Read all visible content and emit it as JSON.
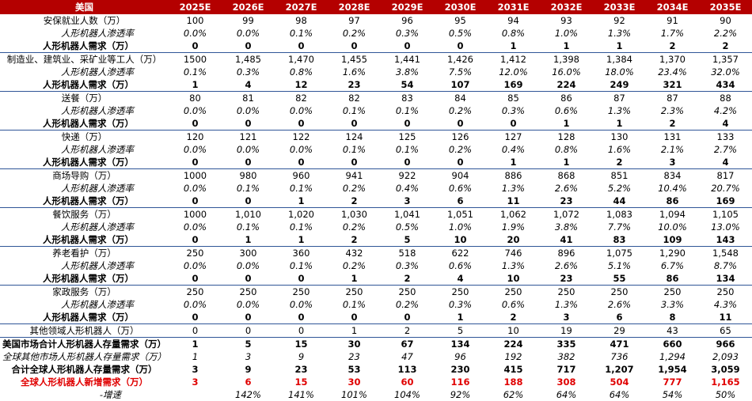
{
  "header": {
    "title": "美国",
    "years": [
      "2025E",
      "2026E",
      "2027E",
      "2028E",
      "2029E",
      "2030E",
      "2031E",
      "2032E",
      "2033E",
      "2034E",
      "2035E"
    ]
  },
  "rows": [
    {
      "label": "安保就业人数（万）",
      "values": [
        "100",
        "99",
        "98",
        "97",
        "96",
        "95",
        "94",
        "93",
        "92",
        "91",
        "90"
      ]
    },
    {
      "label": "人形机器人渗透率",
      "values": [
        "0.0%",
        "0.0%",
        "0.1%",
        "0.2%",
        "0.3%",
        "0.5%",
        "0.8%",
        "1.0%",
        "1.3%",
        "1.7%",
        "2.2%"
      ]
    },
    {
      "label": "人形机器人需求（万）",
      "values": [
        "0",
        "0",
        "0",
        "0",
        "0",
        "0",
        "1",
        "1",
        "1",
        "2",
        "2"
      ]
    },
    {
      "label": "制造业、建筑业、采矿业等工人（万）",
      "values": [
        "1500",
        "1,485",
        "1,470",
        "1,455",
        "1,441",
        "1,426",
        "1,412",
        "1,398",
        "1,384",
        "1,370",
        "1,357"
      ]
    },
    {
      "label": "人形机器人渗透率",
      "values": [
        "0.1%",
        "0.3%",
        "0.8%",
        "1.6%",
        "3.8%",
        "7.5%",
        "12.0%",
        "16.0%",
        "18.0%",
        "23.4%",
        "32.0%"
      ]
    },
    {
      "label": "人形机器人需求（万）",
      "values": [
        "1",
        "4",
        "12",
        "23",
        "54",
        "107",
        "169",
        "224",
        "249",
        "321",
        "434"
      ]
    },
    {
      "label": "送餐（万）",
      "values": [
        "80",
        "81",
        "82",
        "82",
        "83",
        "84",
        "85",
        "86",
        "87",
        "87",
        "88"
      ]
    },
    {
      "label": "人形机器人渗透率",
      "values": [
        "0.0%",
        "0.0%",
        "0.0%",
        "0.1%",
        "0.1%",
        "0.2%",
        "0.3%",
        "0.6%",
        "1.3%",
        "2.3%",
        "4.2%"
      ]
    },
    {
      "label": "人形机器人需求（万）",
      "values": [
        "0",
        "0",
        "0",
        "0",
        "0",
        "0",
        "0",
        "1",
        "1",
        "2",
        "4"
      ]
    },
    {
      "label": "快递（万）",
      "values": [
        "120",
        "121",
        "122",
        "124",
        "125",
        "126",
        "127",
        "128",
        "130",
        "131",
        "133"
      ]
    },
    {
      "label": "人形机器人渗透率",
      "values": [
        "0.0%",
        "0.0%",
        "0.0%",
        "0.1%",
        "0.1%",
        "0.2%",
        "0.4%",
        "0.8%",
        "1.6%",
        "2.1%",
        "2.7%"
      ]
    },
    {
      "label": "人形机器人需求（万）",
      "values": [
        "0",
        "0",
        "0",
        "0",
        "0",
        "0",
        "1",
        "1",
        "2",
        "3",
        "4"
      ]
    },
    {
      "label": "商场导购（万）",
      "values": [
        "1000",
        "980",
        "960",
        "941",
        "922",
        "904",
        "886",
        "868",
        "851",
        "834",
        "817"
      ]
    },
    {
      "label": "人形机器人渗透率",
      "values": [
        "0.0%",
        "0.1%",
        "0.1%",
        "0.2%",
        "0.4%",
        "0.6%",
        "1.3%",
        "2.6%",
        "5.2%",
        "10.4%",
        "20.7%"
      ]
    },
    {
      "label": "人形机器人需求（万）",
      "values": [
        "0",
        "0",
        "1",
        "2",
        "3",
        "6",
        "11",
        "23",
        "44",
        "86",
        "169"
      ]
    },
    {
      "label": "餐饮服务（万）",
      "values": [
        "1000",
        "1,010",
        "1,020",
        "1,030",
        "1,041",
        "1,051",
        "1,062",
        "1,072",
        "1,083",
        "1,094",
        "1,105"
      ]
    },
    {
      "label": "人形机器人渗透率",
      "values": [
        "0.0%",
        "0.1%",
        "0.1%",
        "0.2%",
        "0.5%",
        "1.0%",
        "1.9%",
        "3.8%",
        "7.7%",
        "10.0%",
        "13.0%"
      ]
    },
    {
      "label": "人形机器人需求（万）",
      "values": [
        "0",
        "1",
        "1",
        "2",
        "5",
        "10",
        "20",
        "41",
        "83",
        "109",
        "143"
      ]
    },
    {
      "label": "养老看护（万）",
      "values": [
        "250",
        "300",
        "360",
        "432",
        "518",
        "622",
        "746",
        "896",
        "1,075",
        "1,290",
        "1,548"
      ]
    },
    {
      "label": "人形机器人渗透率",
      "values": [
        "0.0%",
        "0.0%",
        "0.1%",
        "0.2%",
        "0.3%",
        "0.6%",
        "1.3%",
        "2.6%",
        "5.1%",
        "6.7%",
        "8.7%"
      ]
    },
    {
      "label": "人形机器人需求（万）",
      "values": [
        "0",
        "0",
        "0",
        "1",
        "2",
        "4",
        "10",
        "23",
        "55",
        "86",
        "134"
      ]
    },
    {
      "label": "家政服务（万）",
      "values": [
        "250",
        "250",
        "250",
        "250",
        "250",
        "250",
        "250",
        "250",
        "250",
        "250",
        "250"
      ]
    },
    {
      "label": "人形机器人渗透率",
      "values": [
        "0.0%",
        "0.0%",
        "0.0%",
        "0.1%",
        "0.2%",
        "0.3%",
        "0.6%",
        "1.3%",
        "2.6%",
        "3.3%",
        "4.3%"
      ]
    },
    {
      "label": "人形机器人需求（万）",
      "values": [
        "0",
        "0",
        "0",
        "0",
        "0",
        "1",
        "2",
        "3",
        "6",
        "8",
        "11"
      ]
    },
    {
      "label": "其他领域人形机器人（万）",
      "values": [
        "0",
        "0",
        "0",
        "1",
        "2",
        "5",
        "10",
        "19",
        "29",
        "43",
        "65"
      ]
    },
    {
      "label": "美国市场合计人形机器人存量需求（万）",
      "values": [
        "1",
        "5",
        "15",
        "30",
        "67",
        "134",
        "224",
        "335",
        "471",
        "660",
        "966"
      ]
    },
    {
      "label": "全球其他市场人形机器人存量需求（万）",
      "values": [
        "1",
        "3",
        "9",
        "23",
        "47",
        "96",
        "192",
        "382",
        "736",
        "1,294",
        "2,093"
      ]
    },
    {
      "label": "合计全球人形机器人存量需求（万）",
      "values": [
        "3",
        "9",
        "23",
        "53",
        "113",
        "230",
        "415",
        "717",
        "1,207",
        "1,954",
        "3,059"
      ]
    },
    {
      "label": "全球人形机器人新增需求（万）",
      "values": [
        "3",
        "6",
        "15",
        "30",
        "60",
        "116",
        "188",
        "308",
        "504",
        "777",
        "1,165"
      ]
    },
    {
      "label": "-增速",
      "values": [
        null,
        "142%",
        "141%",
        "101%",
        "104%",
        "92%",
        "62%",
        "64%",
        "64%",
        "54%",
        "50%"
      ]
    }
  ]
}
